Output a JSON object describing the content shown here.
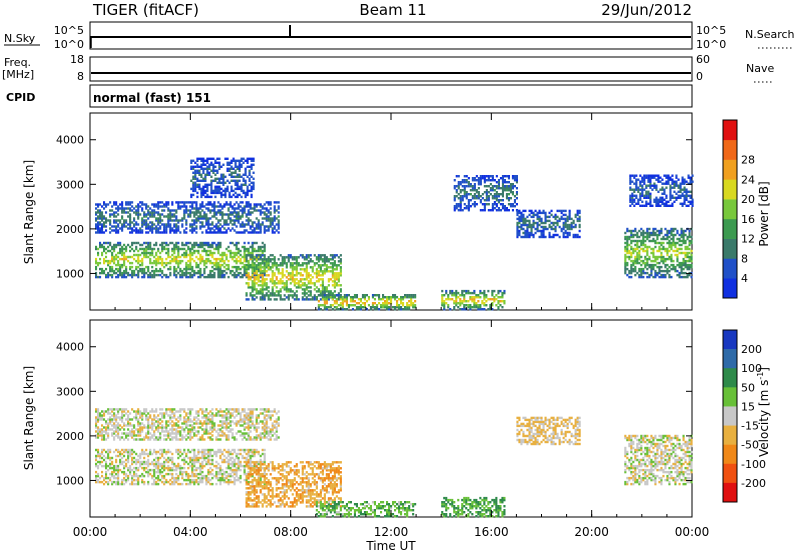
{
  "header": {
    "radar": "TIGER (fitACF)",
    "beam": "Beam 11",
    "date": "29/Jun/2012"
  },
  "summary_panels": {
    "nsky": {
      "left_label": "N.Sky",
      "right_label": "N.Search",
      "ticks_left": [
        "10^5",
        "10^0"
      ],
      "ticks_right": [
        "10^5",
        "10^0"
      ]
    },
    "freq": {
      "left_label": "Freq.",
      "left_unit": "[MHz]",
      "right_label": "Nave",
      "ticks_left": [
        "18",
        "8"
      ],
      "ticks_right": [
        "60",
        "0"
      ]
    },
    "cpid": {
      "label": "CPID",
      "value": "normal (fast) 151"
    }
  },
  "chart_data": [
    {
      "type": "heatmap",
      "name": "power",
      "ylabel": "Slant Range [km]",
      "xlabel": "",
      "x_range_hours": [
        0,
        24
      ],
      "ylim": [
        180,
        4600
      ],
      "yticks": [
        1000,
        2000,
        3000,
        4000
      ],
      "colorbar": {
        "label": "Power [dB]",
        "ticks": [
          "4",
          "8",
          "12",
          "16",
          "20",
          "24",
          "28"
        ],
        "colors": [
          "#1030e0",
          "#2050c8",
          "#3a7a6a",
          "#3c9a50",
          "#78c83c",
          "#d8d820",
          "#f0a020",
          "#f06818",
          "#e01010"
        ]
      },
      "echo_regions": [
        {
          "t": [
            0.2,
            7.0
          ],
          "range": [
            900,
            1700
          ],
          "power_db": 22
        },
        {
          "t": [
            0.2,
            7.5
          ],
          "range": [
            1900,
            2600
          ],
          "power_db": 10
        },
        {
          "t": [
            6.2,
            10.0
          ],
          "range": [
            400,
            1400
          ],
          "power_db": 24
        },
        {
          "t": [
            4.0,
            6.5
          ],
          "range": [
            2700,
            3600
          ],
          "power_db": 8
        },
        {
          "t": [
            9.0,
            13.0
          ],
          "range": [
            180,
            500
          ],
          "power_db": 26
        },
        {
          "t": [
            14.0,
            16.5
          ],
          "range": [
            180,
            600
          ],
          "power_db": 24
        },
        {
          "t": [
            14.5,
            17.0
          ],
          "range": [
            2400,
            3200
          ],
          "power_db": 10
        },
        {
          "t": [
            17.0,
            19.5
          ],
          "range": [
            1800,
            2400
          ],
          "power_db": 10
        },
        {
          "t": [
            21.3,
            24.0
          ],
          "range": [
            900,
            2000
          ],
          "power_db": 20
        },
        {
          "t": [
            21.5,
            24.0
          ],
          "range": [
            2500,
            3200
          ],
          "power_db": 8
        }
      ]
    },
    {
      "type": "heatmap",
      "name": "velocity",
      "ylabel": "Slant Range [km]",
      "xlabel": "Time UT",
      "x_range_hours": [
        0,
        24
      ],
      "xticks": [
        "00:00",
        "04:00",
        "08:00",
        "12:00",
        "16:00",
        "20:00",
        "00:00"
      ],
      "ylim": [
        180,
        4600
      ],
      "yticks": [
        1000,
        2000,
        3000,
        4000
      ],
      "colorbar": {
        "label": "Velocity [m s",
        "label_sup": "-1",
        "label_end": "]",
        "ticks": [
          "200",
          "100",
          "50",
          "15",
          "-15",
          "-50",
          "-100",
          "-200"
        ],
        "colors": [
          "#1838c0",
          "#2e6aa8",
          "#2e8a4a",
          "#68c038",
          "#c8c8c8",
          "#e8b040",
          "#f08818",
          "#f05010",
          "#e01010"
        ]
      },
      "echo_regions": [
        {
          "t": [
            0.2,
            7.0
          ],
          "range": [
            900,
            1700
          ],
          "velocity": 0
        },
        {
          "t": [
            0.2,
            7.5
          ],
          "range": [
            1900,
            2600
          ],
          "velocity": 0
        },
        {
          "t": [
            6.2,
            10.0
          ],
          "range": [
            400,
            1400
          ],
          "velocity": -40
        },
        {
          "t": [
            9.0,
            13.0
          ],
          "range": [
            180,
            500
          ],
          "velocity": 40
        },
        {
          "t": [
            14.0,
            16.5
          ],
          "range": [
            180,
            600
          ],
          "velocity": 50
        },
        {
          "t": [
            17.0,
            19.5
          ],
          "range": [
            1800,
            2400
          ],
          "velocity": -20
        },
        {
          "t": [
            21.3,
            24.0
          ],
          "range": [
            900,
            2000
          ],
          "velocity": 0
        }
      ]
    }
  ]
}
